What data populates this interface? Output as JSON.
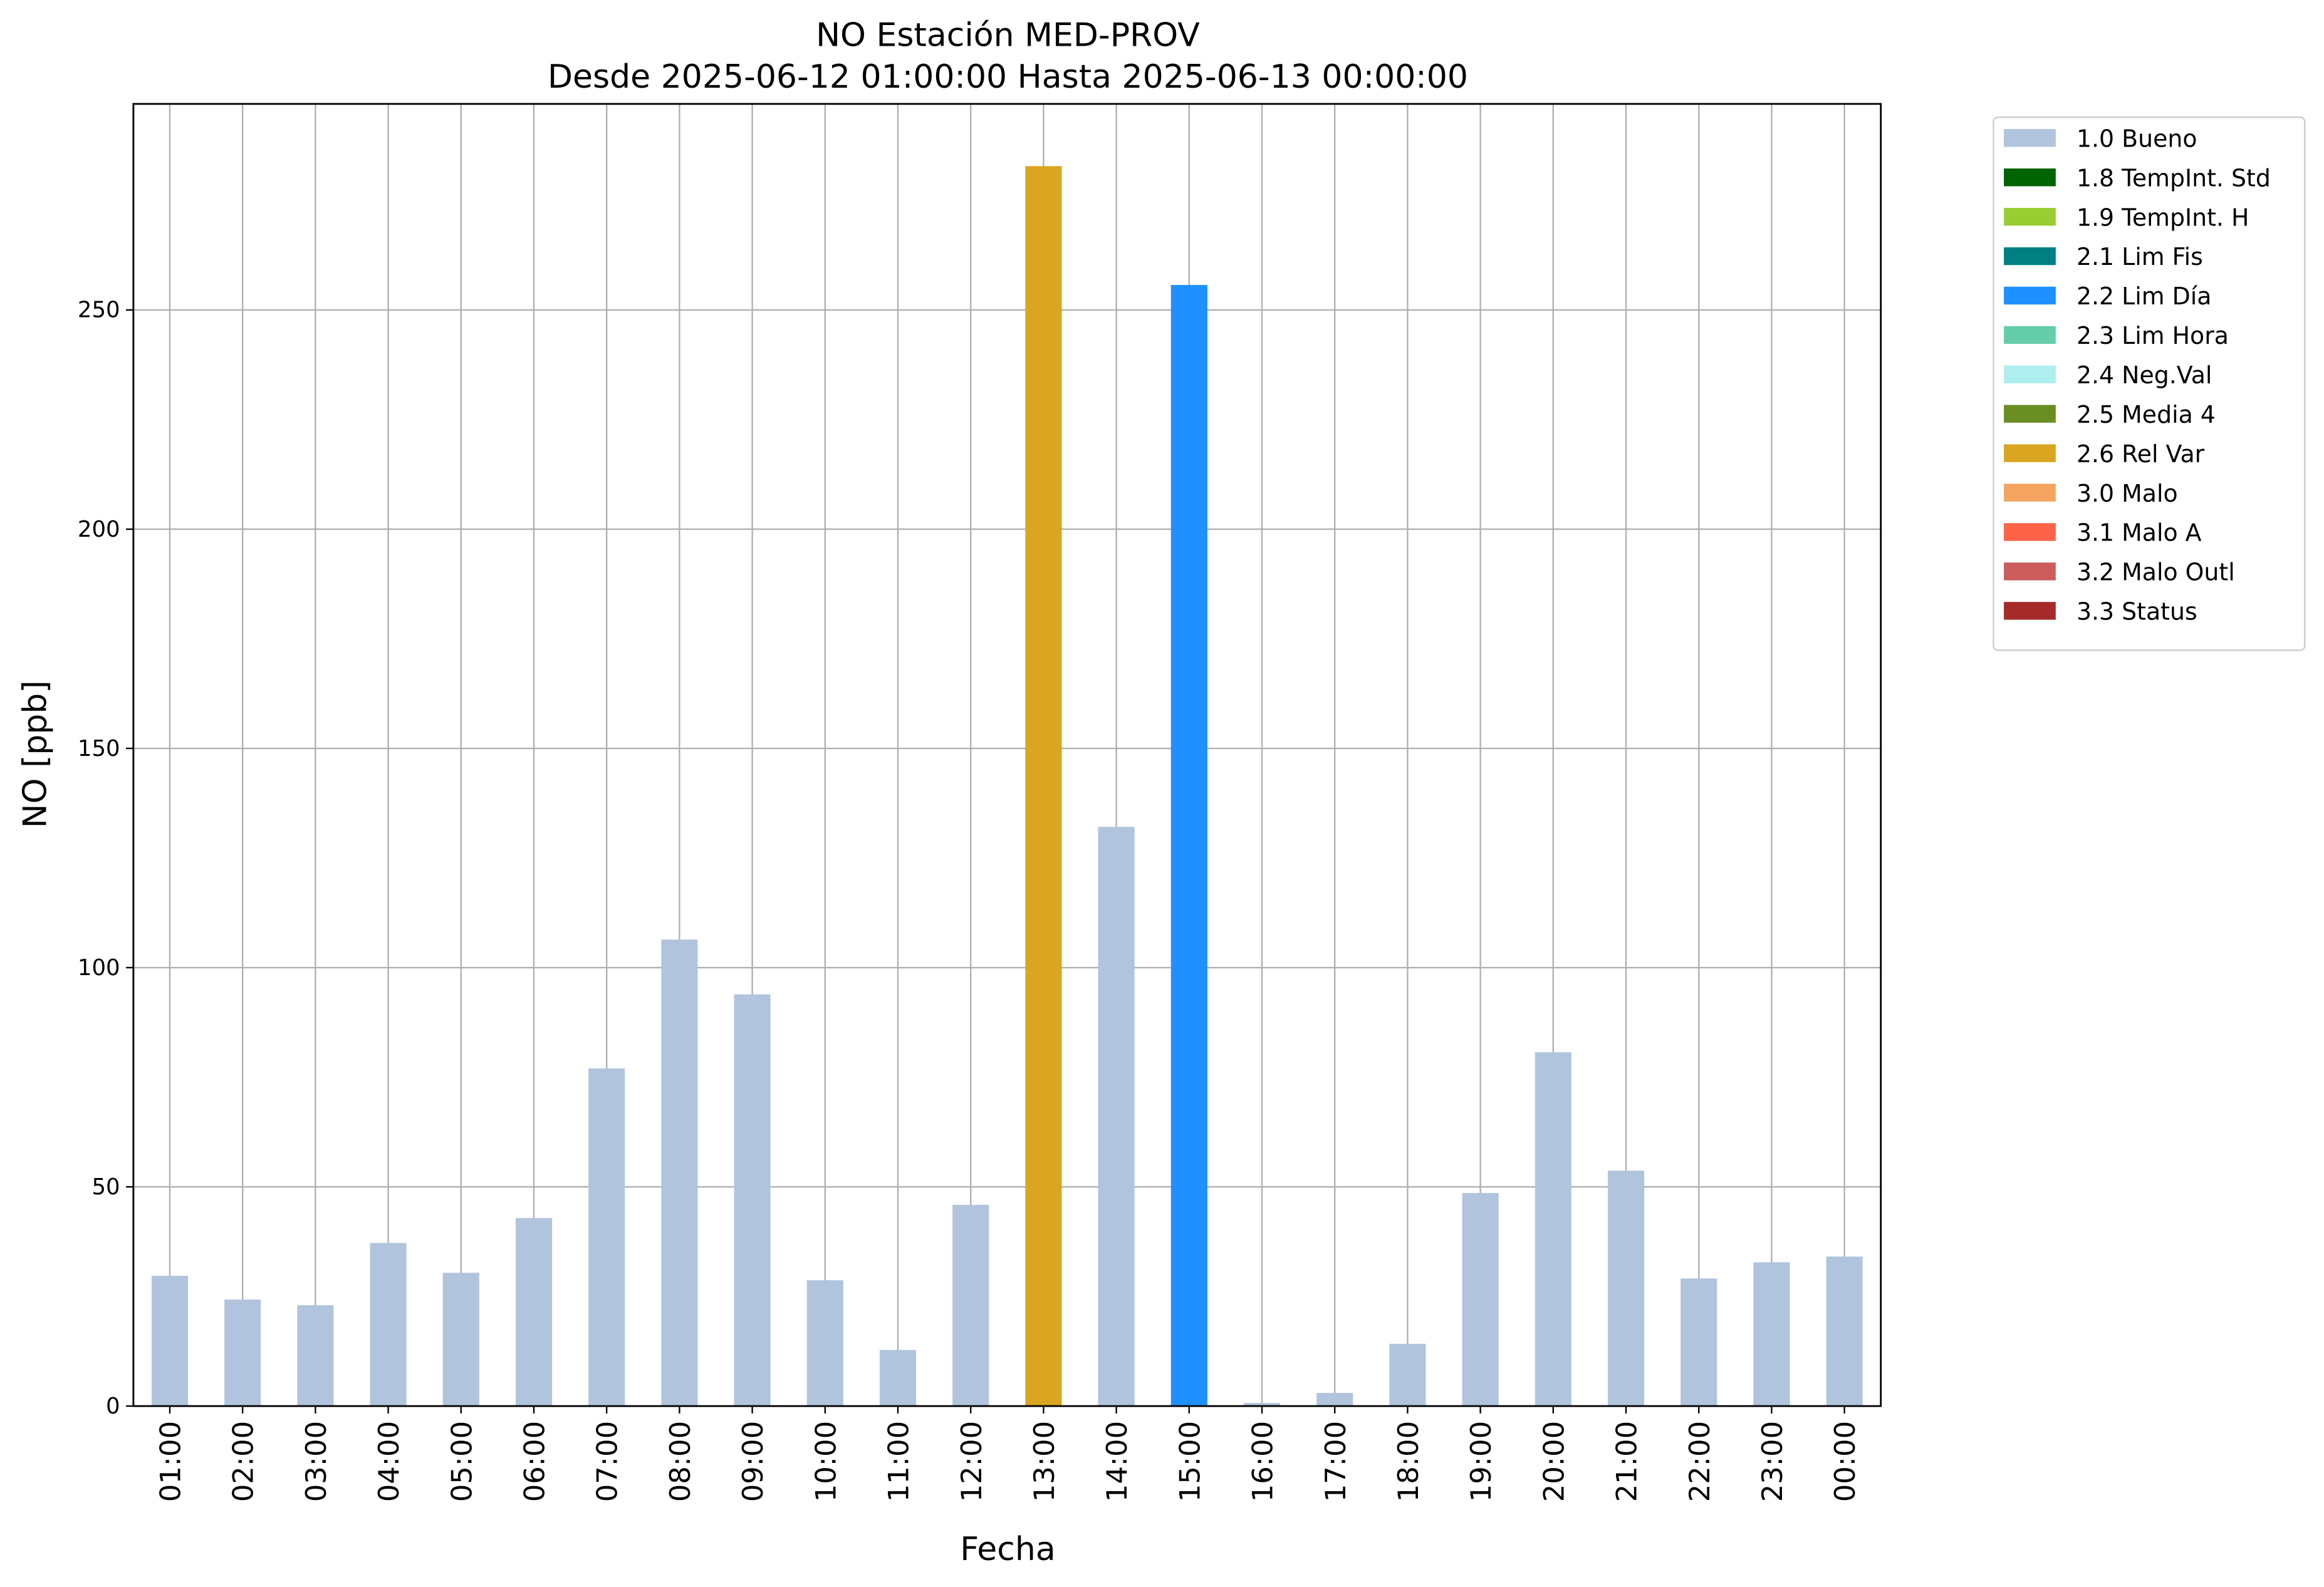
{
  "chart_data": {
    "type": "stacked_bar",
    "title": "NO Estación MED-PROV",
    "subtitle": "Desde 2025-06-12 01:00:00 Hasta 2025-06-13 00:00:00",
    "xlabel": "Fecha",
    "ylabel": "NO [ppb]",
    "categories": [
      "01:00",
      "02:00",
      "03:00",
      "04:00",
      "05:00",
      "06:00",
      "07:00",
      "08:00",
      "09:00",
      "10:00",
      "11:00",
      "12:00",
      "13:00",
      "14:00",
      "15:00",
      "16:00",
      "17:00",
      "18:00",
      "19:00",
      "20:00",
      "21:00",
      "22:00",
      "23:00",
      "00:00"
    ],
    "series": [
      {
        "name": "1.0 Bueno",
        "color": "#b0c4de",
        "values": [
          29.7,
          24.3,
          23.0,
          37.2,
          30.4,
          42.9,
          77.0,
          106.4,
          93.9,
          28.7,
          12.8,
          45.9,
          null,
          132.1,
          null,
          0.7,
          3.0,
          14.2,
          48.6,
          80.7,
          53.7,
          29.1,
          32.8,
          34.1
        ]
      },
      {
        "name": "1.8 TempInt. Std",
        "color": "#006400",
        "values": [
          null,
          null,
          null,
          null,
          null,
          null,
          null,
          null,
          null,
          null,
          null,
          null,
          null,
          null,
          null,
          null,
          null,
          null,
          null,
          null,
          null,
          null,
          null,
          null
        ]
      },
      {
        "name": "1.9 TempInt. H",
        "color": "#9acd32",
        "values": [
          null,
          null,
          null,
          null,
          null,
          null,
          null,
          null,
          null,
          null,
          null,
          null,
          null,
          null,
          null,
          null,
          null,
          null,
          null,
          null,
          null,
          null,
          null,
          null
        ]
      },
      {
        "name": "2.1 Lim Fis",
        "color": "#008080",
        "values": [
          null,
          null,
          null,
          null,
          null,
          null,
          null,
          null,
          null,
          null,
          null,
          null,
          null,
          null,
          null,
          null,
          null,
          null,
          null,
          null,
          null,
          null,
          null,
          null
        ]
      },
      {
        "name": "2.2 Lim Día",
        "color": "#1e90ff",
        "values": [
          null,
          null,
          null,
          null,
          null,
          null,
          null,
          null,
          null,
          null,
          null,
          null,
          null,
          null,
          255.7,
          null,
          null,
          null,
          null,
          null,
          null,
          null,
          null,
          null
        ]
      },
      {
        "name": "2.3 Lim Hora",
        "color": "#66cdaa",
        "values": [
          null,
          null,
          null,
          null,
          null,
          null,
          null,
          null,
          null,
          null,
          null,
          null,
          null,
          null,
          null,
          null,
          null,
          null,
          null,
          null,
          null,
          null,
          null,
          null
        ]
      },
      {
        "name": "2.4 Neg.Val",
        "color": "#afeeee",
        "values": [
          null,
          null,
          null,
          null,
          null,
          null,
          null,
          null,
          null,
          null,
          null,
          null,
          null,
          null,
          null,
          null,
          null,
          null,
          null,
          null,
          null,
          null,
          null,
          null
        ]
      },
      {
        "name": "2.5 Media 4",
        "color": "#6b8e23",
        "values": [
          null,
          null,
          null,
          null,
          null,
          null,
          null,
          null,
          null,
          null,
          null,
          null,
          null,
          null,
          null,
          null,
          null,
          null,
          null,
          null,
          null,
          null,
          null,
          null
        ]
      },
      {
        "name": "2.6 Rel Var",
        "color": "#daa520",
        "values": [
          null,
          null,
          null,
          null,
          null,
          null,
          null,
          null,
          null,
          null,
          null,
          null,
          282.8,
          null,
          null,
          null,
          null,
          null,
          null,
          null,
          null,
          null,
          null,
          null
        ]
      },
      {
        "name": "3.0 Malo",
        "color": "#f4a460",
        "values": [
          null,
          null,
          null,
          null,
          null,
          null,
          null,
          null,
          null,
          null,
          null,
          null,
          null,
          null,
          null,
          null,
          null,
          null,
          null,
          null,
          null,
          null,
          null,
          null
        ]
      },
      {
        "name": "3.1 Malo A",
        "color": "#ff6347",
        "values": [
          null,
          null,
          null,
          null,
          null,
          null,
          null,
          null,
          null,
          null,
          null,
          null,
          null,
          null,
          null,
          null,
          null,
          null,
          null,
          null,
          null,
          null,
          null,
          null
        ]
      },
      {
        "name": "3.2 Malo Outl",
        "color": "#cd5c5c",
        "values": [
          null,
          null,
          null,
          null,
          null,
          null,
          null,
          null,
          null,
          null,
          null,
          null,
          null,
          null,
          null,
          null,
          null,
          null,
          null,
          null,
          null,
          null,
          null,
          null
        ]
      },
      {
        "name": "3.3 Status",
        "color": "#a52a2a",
        "values": [
          null,
          null,
          null,
          null,
          null,
          null,
          null,
          null,
          null,
          null,
          null,
          null,
          null,
          null,
          null,
          null,
          null,
          null,
          null,
          null,
          null,
          null,
          null,
          null
        ]
      }
    ],
    "ylim": [
      0,
      297
    ],
    "yticks": [
      0,
      50,
      100,
      150,
      200,
      250
    ],
    "grid": true,
    "legend": "outside-upper-right"
  }
}
